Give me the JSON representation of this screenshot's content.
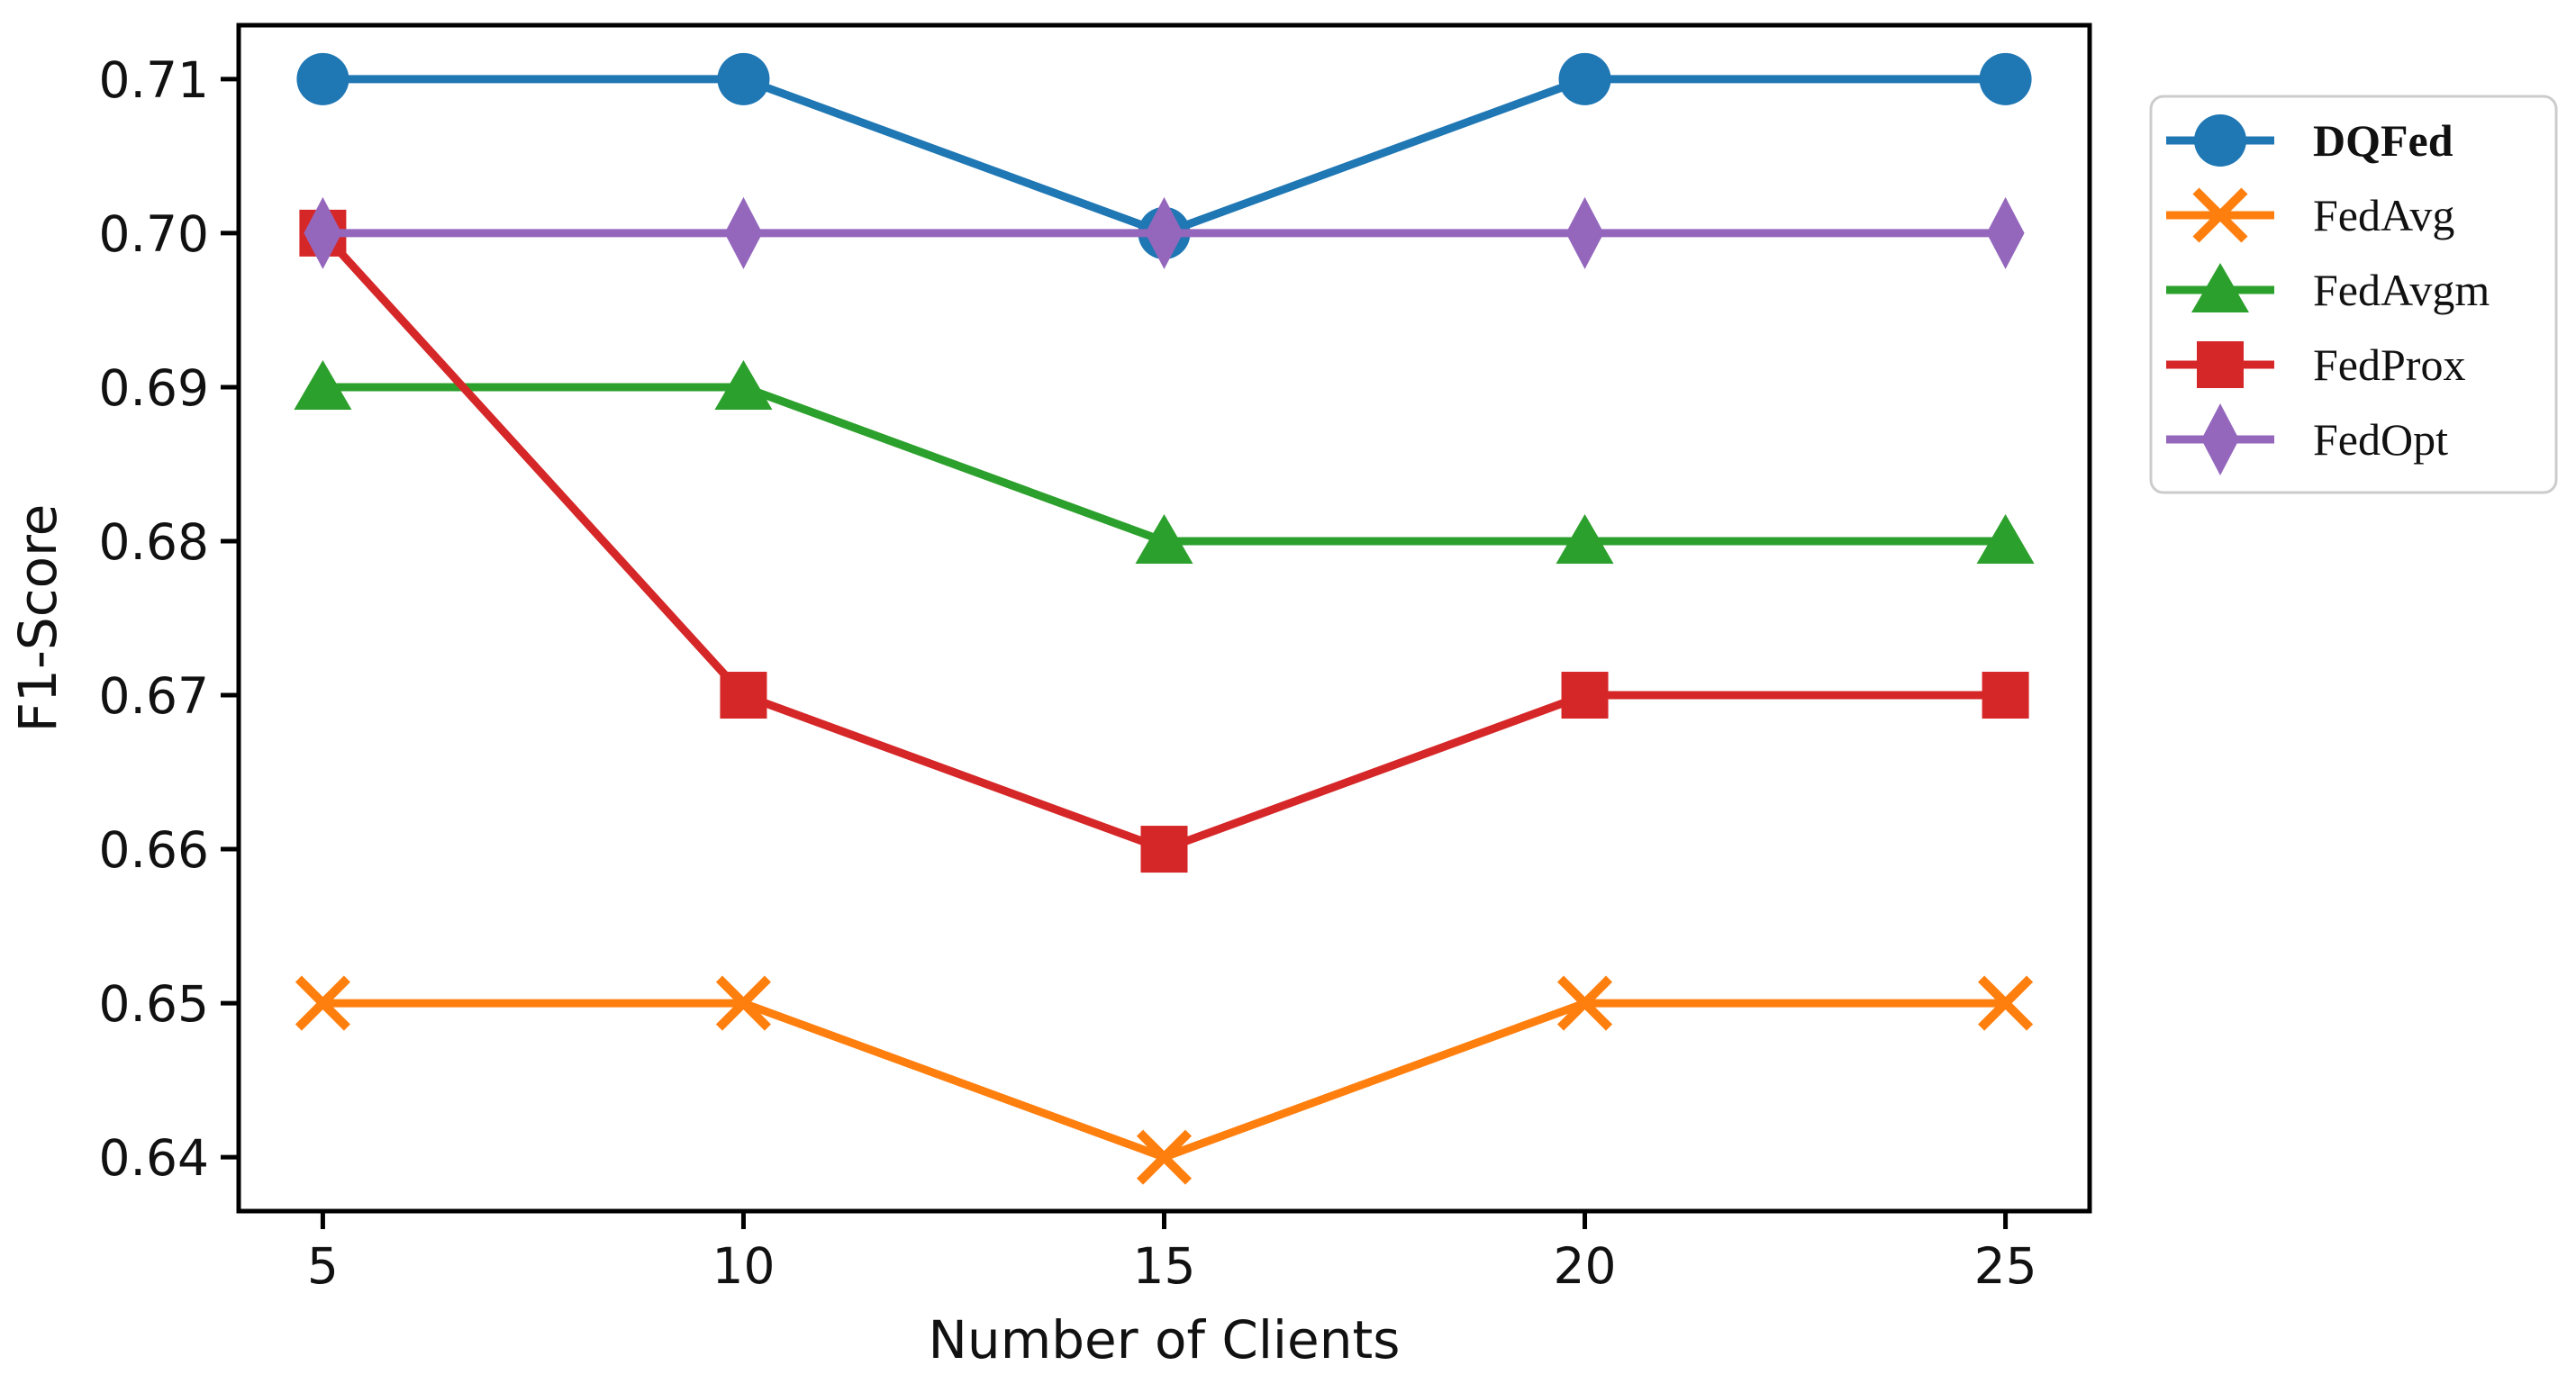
{
  "figure": {
    "background": "#ffffff",
    "spine_color": "#000000",
    "text_color": "#111111"
  },
  "chart_data": {
    "type": "line",
    "title": "",
    "xlabel": "Number of Clients",
    "ylabel": "F1-Score",
    "x": [
      5,
      10,
      15,
      20,
      25
    ],
    "xtick_labels": [
      "5",
      "10",
      "15",
      "20",
      "25"
    ],
    "ytick_values": [
      0.64,
      0.65,
      0.66,
      0.67,
      0.68,
      0.69,
      0.7,
      0.71
    ],
    "ytick_labels": [
      "0.64",
      "0.65",
      "0.66",
      "0.67",
      "0.68",
      "0.69",
      "0.70",
      "0.71"
    ],
    "xlim": [
      4,
      26
    ],
    "ylim": [
      0.6365,
      0.7135
    ],
    "grid": false,
    "series": [
      {
        "name": "DQFed",
        "values": [
          0.71,
          0.71,
          0.7,
          0.71,
          0.71
        ],
        "color": "#1f77b4",
        "marker": "circle",
        "legend_bold": true
      },
      {
        "name": "FedAvg",
        "values": [
          0.65,
          0.65,
          0.64,
          0.65,
          0.65
        ],
        "color": "#ff7f0e",
        "marker": "x",
        "legend_bold": false
      },
      {
        "name": "FedAvgm",
        "values": [
          0.69,
          0.69,
          0.68,
          0.68,
          0.68
        ],
        "color": "#2ca02c",
        "marker": "triangle-up",
        "legend_bold": false
      },
      {
        "name": "FedProx",
        "values": [
          0.7,
          0.67,
          0.66,
          0.67,
          0.67
        ],
        "color": "#d62728",
        "marker": "square",
        "legend_bold": false
      },
      {
        "name": "FedOpt",
        "values": [
          0.7,
          0.7,
          0.7,
          0.7,
          0.7
        ],
        "color": "#9467bd",
        "marker": "diamond-thin",
        "legend_bold": false
      }
    ],
    "legend": {
      "position": "outside-upper-right",
      "border_color": "#cccccc",
      "background": "#ffffff",
      "labels": [
        "DQFed",
        "FedAvg",
        "FedAvgm",
        "FedProx",
        "FedOpt"
      ]
    }
  }
}
